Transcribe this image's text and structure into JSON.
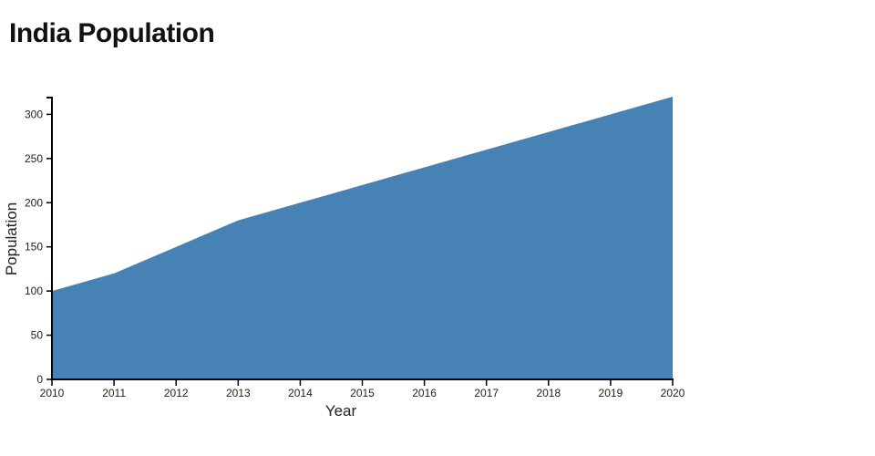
{
  "chart_data": {
    "type": "area",
    "title": "India Population",
    "xlabel": "Year",
    "ylabel": "Population",
    "x": [
      2010,
      2011,
      2012,
      2013,
      2014,
      2015,
      2016,
      2017,
      2018,
      2019,
      2020
    ],
    "series": [
      {
        "name": "Population",
        "values": [
          100,
          120,
          150,
          180,
          200,
          220,
          240,
          260,
          280,
          300,
          320
        ]
      }
    ],
    "xlim": [
      2010,
      2020
    ],
    "ylim": [
      0,
      320
    ],
    "x_ticks": [
      "2010",
      "2011",
      "2012",
      "2013",
      "2014",
      "2015",
      "2016",
      "2017",
      "2018",
      "2019",
      "2020"
    ],
    "y_ticks": [
      0,
      50,
      100,
      150,
      200,
      250,
      300
    ],
    "grid": false,
    "legend": false,
    "area_color": "#4682b4",
    "axis_color": "#000000",
    "tick_label_color": "#222222",
    "title_color": "#111111",
    "background_color": "#ffffff"
  }
}
